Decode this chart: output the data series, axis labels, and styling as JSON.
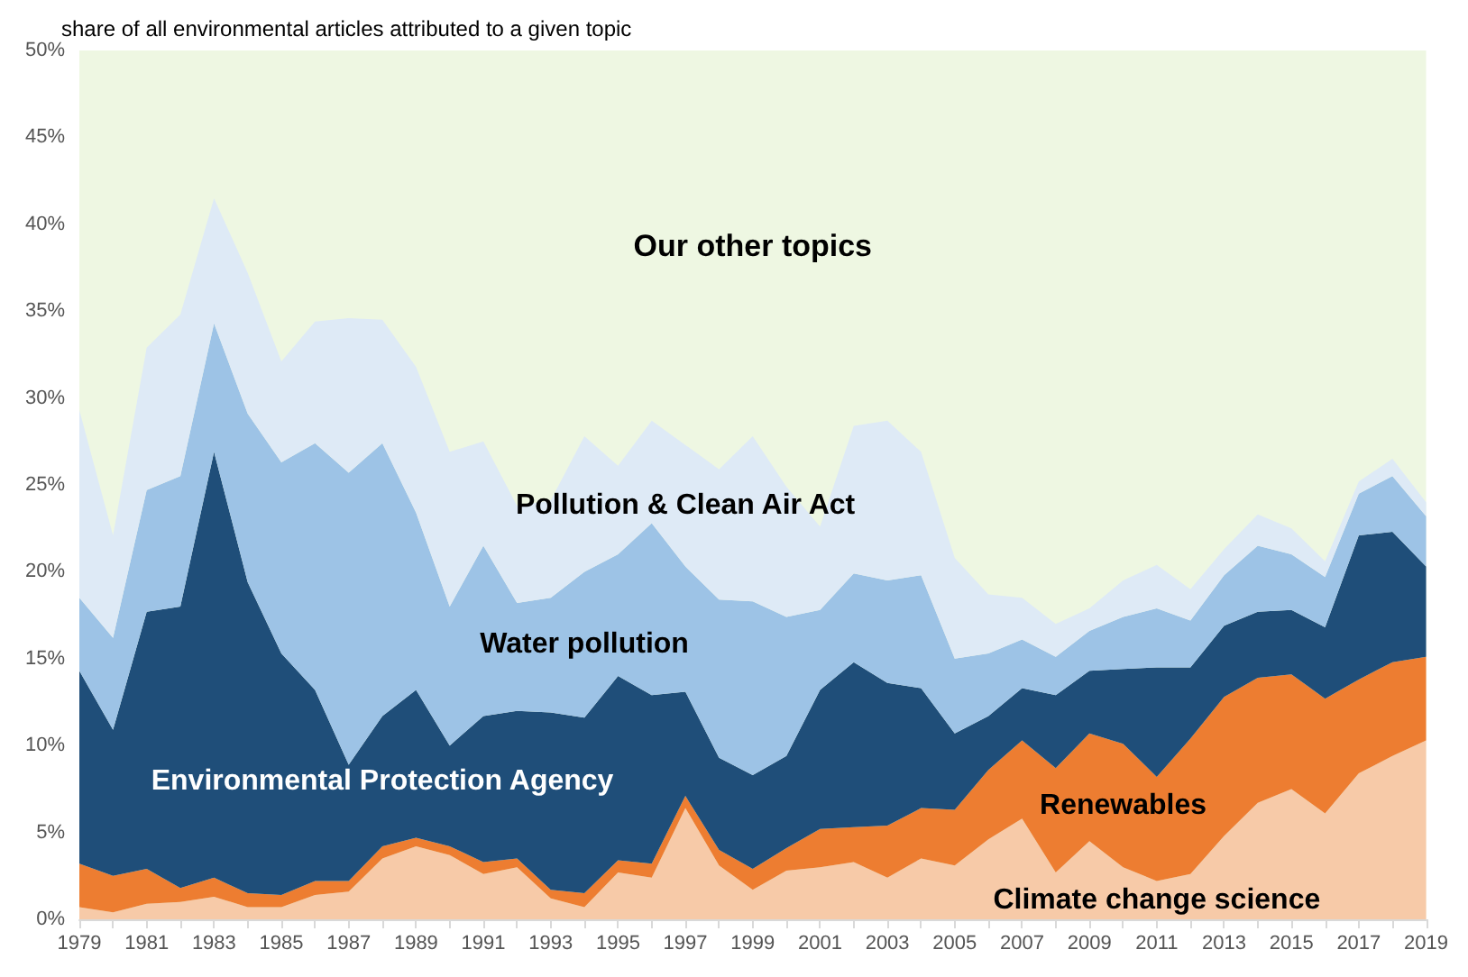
{
  "chart_data": {
    "type": "area",
    "ylabel": "share of all environmental articles attributed to a given topic",
    "stacked": true,
    "marker": "none",
    "x": [
      1979,
      1980,
      1981,
      1982,
      1983,
      1984,
      1985,
      1986,
      1987,
      1988,
      1989,
      1990,
      1991,
      1992,
      1993,
      1994,
      1995,
      1996,
      1997,
      1998,
      1999,
      2000,
      2001,
      2002,
      2003,
      2004,
      2005,
      2006,
      2007,
      2008,
      2009,
      2010,
      2011,
      2012,
      2013,
      2014,
      2015,
      2016,
      2017,
      2018,
      2019
    ],
    "series": [
      {
        "name": "Climate change science",
        "color": "#f7caa8",
        "values": [
          0.7,
          0.4,
          0.9,
          1.0,
          1.3,
          0.7,
          0.7,
          1.4,
          1.6,
          3.5,
          4.2,
          3.7,
          2.6,
          3.0,
          1.2,
          0.7,
          2.7,
          2.4,
          6.4,
          3.1,
          1.7,
          2.8,
          3.0,
          3.3,
          2.4,
          3.5,
          3.1,
          4.6,
          5.8,
          2.7,
          4.5,
          3.0,
          2.2,
          2.6,
          4.8,
          6.7,
          7.5,
          6.1,
          8.4,
          9.4,
          10.3
        ]
      },
      {
        "name": "Renewables",
        "color": "#ed7d31",
        "values": [
          2.5,
          2.1,
          2.0,
          0.8,
          1.1,
          0.8,
          0.7,
          0.8,
          0.6,
          0.7,
          0.5,
          0.5,
          0.7,
          0.5,
          0.5,
          0.8,
          0.7,
          0.8,
          0.7,
          0.9,
          1.2,
          1.3,
          2.2,
          2.0,
          3.0,
          2.9,
          3.2,
          4.0,
          4.5,
          6.0,
          6.2,
          7.1,
          6.0,
          7.8,
          8.0,
          7.2,
          6.6,
          6.6,
          5.4,
          5.4,
          4.8
        ]
      },
      {
        "name": "Environmental Protection Agency",
        "color": "#1f4e79",
        "values": [
          11.1,
          8.4,
          14.8,
          16.2,
          24.5,
          17.9,
          13.9,
          11.0,
          6.7,
          7.5,
          8.5,
          5.8,
          8.4,
          8.5,
          10.2,
          10.1,
          10.6,
          9.7,
          6.0,
          5.3,
          5.4,
          5.3,
          8.0,
          9.5,
          8.2,
          6.9,
          4.4,
          3.1,
          3.0,
          4.2,
          3.6,
          4.3,
          6.3,
          4.1,
          4.1,
          3.8,
          3.7,
          4.1,
          8.3,
          7.5,
          5.2
        ]
      },
      {
        "name": "Water pollution",
        "color": "#9dc3e6",
        "values": [
          4.2,
          5.3,
          7.0,
          7.5,
          7.4,
          9.7,
          11.0,
          14.2,
          16.8,
          15.7,
          10.2,
          8.0,
          9.8,
          6.2,
          6.6,
          8.4,
          7.0,
          9.9,
          7.2,
          9.1,
          10.0,
          8.0,
          4.6,
          5.1,
          5.9,
          6.5,
          4.3,
          3.6,
          2.8,
          2.2,
          2.3,
          3.0,
          3.4,
          2.7,
          2.9,
          3.8,
          3.2,
          2.9,
          2.4,
          3.2,
          2.9
        ]
      },
      {
        "name": "Pollution & Clean Air Act",
        "color": "#deeaf6",
        "values": [
          10.8,
          5.9,
          8.2,
          9.3,
          7.2,
          8.1,
          5.8,
          7.0,
          8.9,
          7.1,
          8.4,
          8.9,
          6.0,
          5.6,
          5.6,
          7.8,
          5.1,
          5.9,
          7.0,
          7.5,
          9.5,
          7.5,
          4.8,
          8.5,
          9.2,
          7.1,
          5.8,
          3.4,
          2.4,
          1.9,
          1.3,
          2.1,
          2.5,
          1.8,
          1.5,
          1.8,
          1.5,
          0.9,
          0.7,
          1.0,
          0.8
        ]
      }
    ],
    "bands": [
      {
        "axis": "y",
        "from": 0,
        "to": 50,
        "label": "Our other topics",
        "color": "#eef7e2"
      }
    ],
    "xlim": [
      1979,
      2019
    ],
    "xticks": [
      1979,
      {
        "value": 1980,
        "label": null
      },
      1981,
      {
        "value": 1982,
        "label": null
      },
      1983,
      {
        "value": 1984,
        "label": null
      },
      1985,
      {
        "value": 1986,
        "label": null
      },
      1987,
      {
        "value": 1988,
        "label": null
      },
      1989,
      {
        "value": 1990,
        "label": null
      },
      1991,
      {
        "value": 1992,
        "label": null
      },
      1993,
      {
        "value": 1994,
        "label": null
      },
      1995,
      {
        "value": 1996,
        "label": null
      },
      1997,
      {
        "value": 1998,
        "label": null
      },
      1999,
      {
        "value": 2000,
        "label": null
      },
      2001,
      {
        "value": 2002,
        "label": null
      },
      2003,
      {
        "value": 2004,
        "label": null
      },
      2005,
      {
        "value": 2006,
        "label": null
      },
      2007,
      {
        "value": 2008,
        "label": null
      },
      2009,
      {
        "value": 2010,
        "label": null
      },
      2011,
      {
        "value": 2012,
        "label": null
      },
      2013,
      {
        "value": 2014,
        "label": null
      },
      2015,
      {
        "value": 2016,
        "label": null
      },
      2017,
      {
        "value": 2018,
        "label": null
      },
      2019
    ],
    "ylim": [
      0,
      50
    ],
    "yticks": [
      {
        "value": 0,
        "label": "0%"
      },
      {
        "value": 5,
        "label": "5%"
      },
      {
        "value": 10,
        "label": "10%"
      },
      {
        "value": 15,
        "label": "15%"
      },
      {
        "value": 20,
        "label": "20%"
      },
      {
        "value": 25,
        "label": "25%"
      },
      {
        "value": 30,
        "label": "30%"
      },
      {
        "value": 35,
        "label": "35%"
      },
      {
        "value": 40,
        "label": "40%"
      },
      {
        "value": 45,
        "label": "45%"
      },
      {
        "value": 50,
        "label": "50%"
      }
    ]
  }
}
